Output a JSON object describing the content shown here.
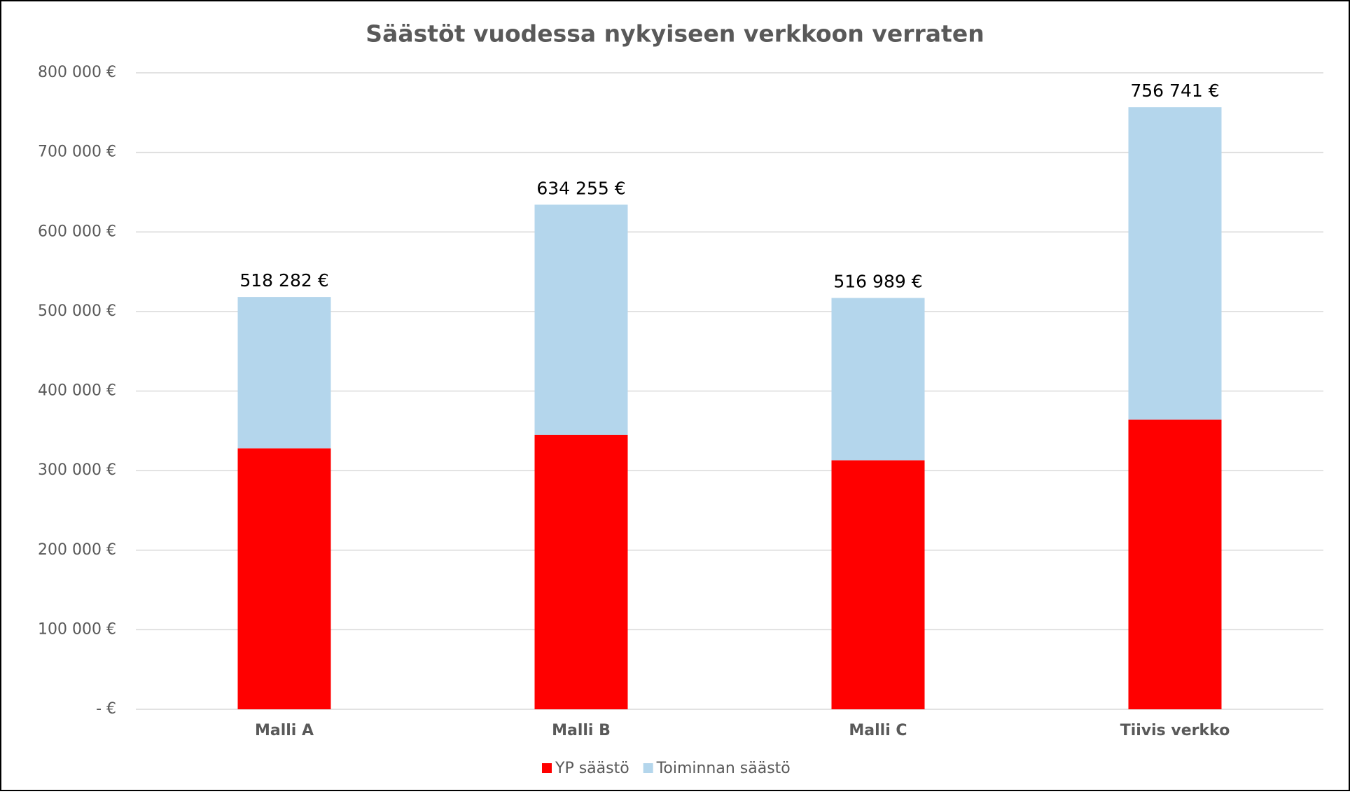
{
  "chart_data": {
    "type": "stacked_bar",
    "title": "Säästöt vuodessa nykyiseen verkkoon verraten",
    "categories": [
      "Malli A",
      "Malli B",
      "Malli C",
      "Tiivis verkko"
    ],
    "series": [
      {
        "name": "YP säästö",
        "color": "#ff0000",
        "values": [
          328000,
          345000,
          313000,
          364000
        ]
      },
      {
        "name": "Toiminnan säästö",
        "color": "#b4d6ec",
        "values": [
          190282,
          289255,
          203989,
          392741
        ]
      }
    ],
    "totals": [
      518282,
      634255,
      516989,
      756741
    ],
    "total_labels": [
      "518 282 €",
      "634 255 €",
      "516 989 €",
      "756 741 €"
    ],
    "ylim": [
      0,
      800000
    ],
    "yticks": [
      {
        "value": 0,
        "label": "-   €"
      },
      {
        "value": 100000,
        "label": "100 000 €"
      },
      {
        "value": 200000,
        "label": "200 000 €"
      },
      {
        "value": 300000,
        "label": "300 000 €"
      },
      {
        "value": 400000,
        "label": "400 000 €"
      },
      {
        "value": 500000,
        "label": "500 000 €"
      },
      {
        "value": 600000,
        "label": "600 000 €"
      },
      {
        "value": 700000,
        "label": "700 000 €"
      },
      {
        "value": 800000,
        "label": "800 000 €"
      }
    ],
    "grid": true,
    "legend": "bottom"
  }
}
